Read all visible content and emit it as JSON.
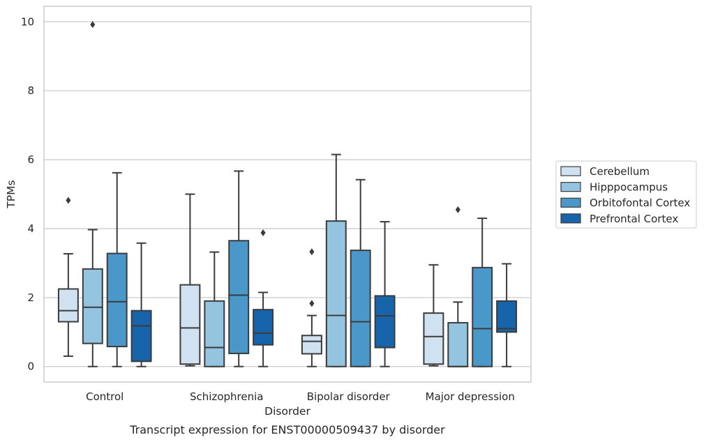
{
  "chart_data": {
    "type": "boxplot",
    "title": "",
    "caption": "Transcript expression for ENST00000509437 by disorder",
    "xlabel": "Disorder",
    "ylabel": "TPMs",
    "ylim": [
      -0.45,
      10.45
    ],
    "yticks": [
      "0",
      "2",
      "4",
      "6",
      "8",
      "10"
    ],
    "grid": "horizontal",
    "legend_position": "right",
    "categories": [
      "Control",
      "Schizophrenia",
      "Bipolar disorder",
      "Major depression"
    ],
    "colors": [
      "#d0e1f2",
      "#94c4df",
      "#4a98c9",
      "#1764ab"
    ],
    "series": [
      {
        "name": "Cerebellum",
        "boxes": [
          {
            "whislo": 0.3,
            "q1": 1.3,
            "med": 1.62,
            "q3": 2.25,
            "whishi": 3.27,
            "fliers": [
              4.82
            ]
          },
          {
            "whislo": 0.02,
            "q1": 0.07,
            "med": 1.12,
            "q3": 2.37,
            "whishi": 5.0,
            "fliers": []
          },
          {
            "whislo": 0.0,
            "q1": 0.37,
            "med": 0.73,
            "q3": 0.9,
            "whishi": 1.48,
            "fliers": [
              1.83,
              3.33
            ]
          },
          {
            "whislo": 0.02,
            "q1": 0.07,
            "med": 0.87,
            "q3": 1.55,
            "whishi": 2.95,
            "fliers": []
          }
        ]
      },
      {
        "name": "Hipppocampus",
        "boxes": [
          {
            "whislo": 0.0,
            "q1": 0.67,
            "med": 1.72,
            "q3": 2.83,
            "whishi": 3.97,
            "fliers": [
              9.92
            ]
          },
          {
            "whislo": 0.0,
            "q1": 0.0,
            "med": 0.55,
            "q3": 1.9,
            "whishi": 3.32,
            "fliers": []
          },
          {
            "whislo": 0.0,
            "q1": 0.0,
            "med": 1.48,
            "q3": 4.22,
            "whishi": 6.15,
            "fliers": []
          },
          {
            "whislo": 0.0,
            "q1": 0.0,
            "med": 0.0,
            "q3": 1.27,
            "whishi": 1.87,
            "fliers": [
              4.55
            ]
          }
        ]
      },
      {
        "name": "Orbitofontal Cortex",
        "boxes": [
          {
            "whislo": 0.0,
            "q1": 0.58,
            "med": 1.88,
            "q3": 3.28,
            "whishi": 5.62,
            "fliers": []
          },
          {
            "whislo": 0.0,
            "q1": 0.38,
            "med": 2.07,
            "q3": 3.65,
            "whishi": 5.67,
            "fliers": []
          },
          {
            "whislo": 0.0,
            "q1": 0.0,
            "med": 1.3,
            "q3": 3.37,
            "whishi": 5.42,
            "fliers": []
          },
          {
            "whislo": 0.0,
            "q1": 0.0,
            "med": 1.1,
            "q3": 2.87,
            "whishi": 4.3,
            "fliers": []
          }
        ]
      },
      {
        "name": "Prefrontal Cortex",
        "boxes": [
          {
            "whislo": 0.0,
            "q1": 0.15,
            "med": 1.18,
            "q3": 1.62,
            "whishi": 3.58,
            "fliers": []
          },
          {
            "whislo": 0.0,
            "q1": 0.63,
            "med": 0.97,
            "q3": 1.65,
            "whishi": 2.15,
            "fliers": [
              3.88
            ]
          },
          {
            "whislo": 0.0,
            "q1": 0.55,
            "med": 1.47,
            "q3": 2.05,
            "whishi": 4.2,
            "fliers": []
          },
          {
            "whislo": 0.0,
            "q1": 1.0,
            "med": 1.1,
            "q3": 1.9,
            "whishi": 2.98,
            "fliers": []
          }
        ]
      }
    ]
  }
}
